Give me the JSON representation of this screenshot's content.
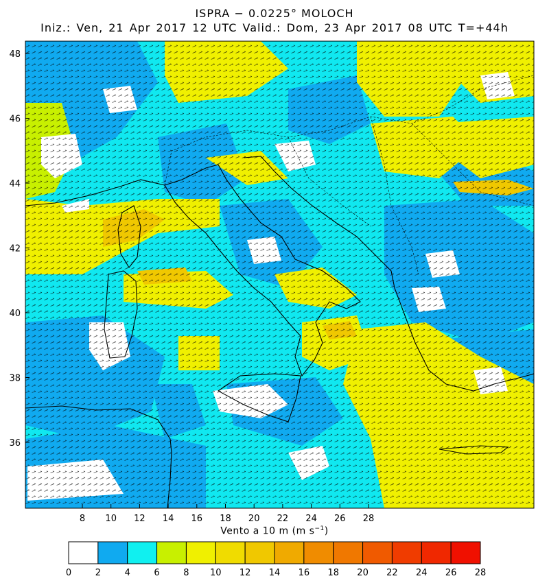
{
  "title": {
    "line1": "ISPRA − 0.0225° MOLOCH",
    "line2": "Iniz.: Ven, 21 Apr 2017  12 UTC  Valid.: Dom, 23 Apr 2017  08 UTC  T=+44h"
  },
  "map": {
    "lon_ticks": [
      "8",
      "10",
      "12",
      "14",
      "16",
      "18",
      "20",
      "22",
      "24",
      "26",
      "28"
    ],
    "lat_ticks": [
      "36",
      "38",
      "40",
      "42",
      "44",
      "46",
      "48"
    ]
  },
  "colorbar": {
    "title_main": "Vento a 10 m (m s",
    "title_exp": "−1",
    "title_close": ")",
    "labels": [
      "0",
      "2",
      "4",
      "6",
      "8",
      "10",
      "12",
      "14",
      "16",
      "18",
      "20",
      "22",
      "24",
      "26",
      "28"
    ],
    "colors": [
      "#ffffff",
      "#10aaf0",
      "#10f0f0",
      "#c8f000",
      "#f0f000",
      "#f0dc00",
      "#f0c800",
      "#f0aa00",
      "#f08c00",
      "#f07800",
      "#f05a00",
      "#f03c00",
      "#f02800",
      "#f01000"
    ]
  },
  "colors": {
    "sea_base": "#10e8f0",
    "land_blue": "#10aaf0",
    "calm": "#ffffff",
    "moderate": "#f0f000",
    "strong": "#f0c800",
    "coast": "#000000"
  }
}
